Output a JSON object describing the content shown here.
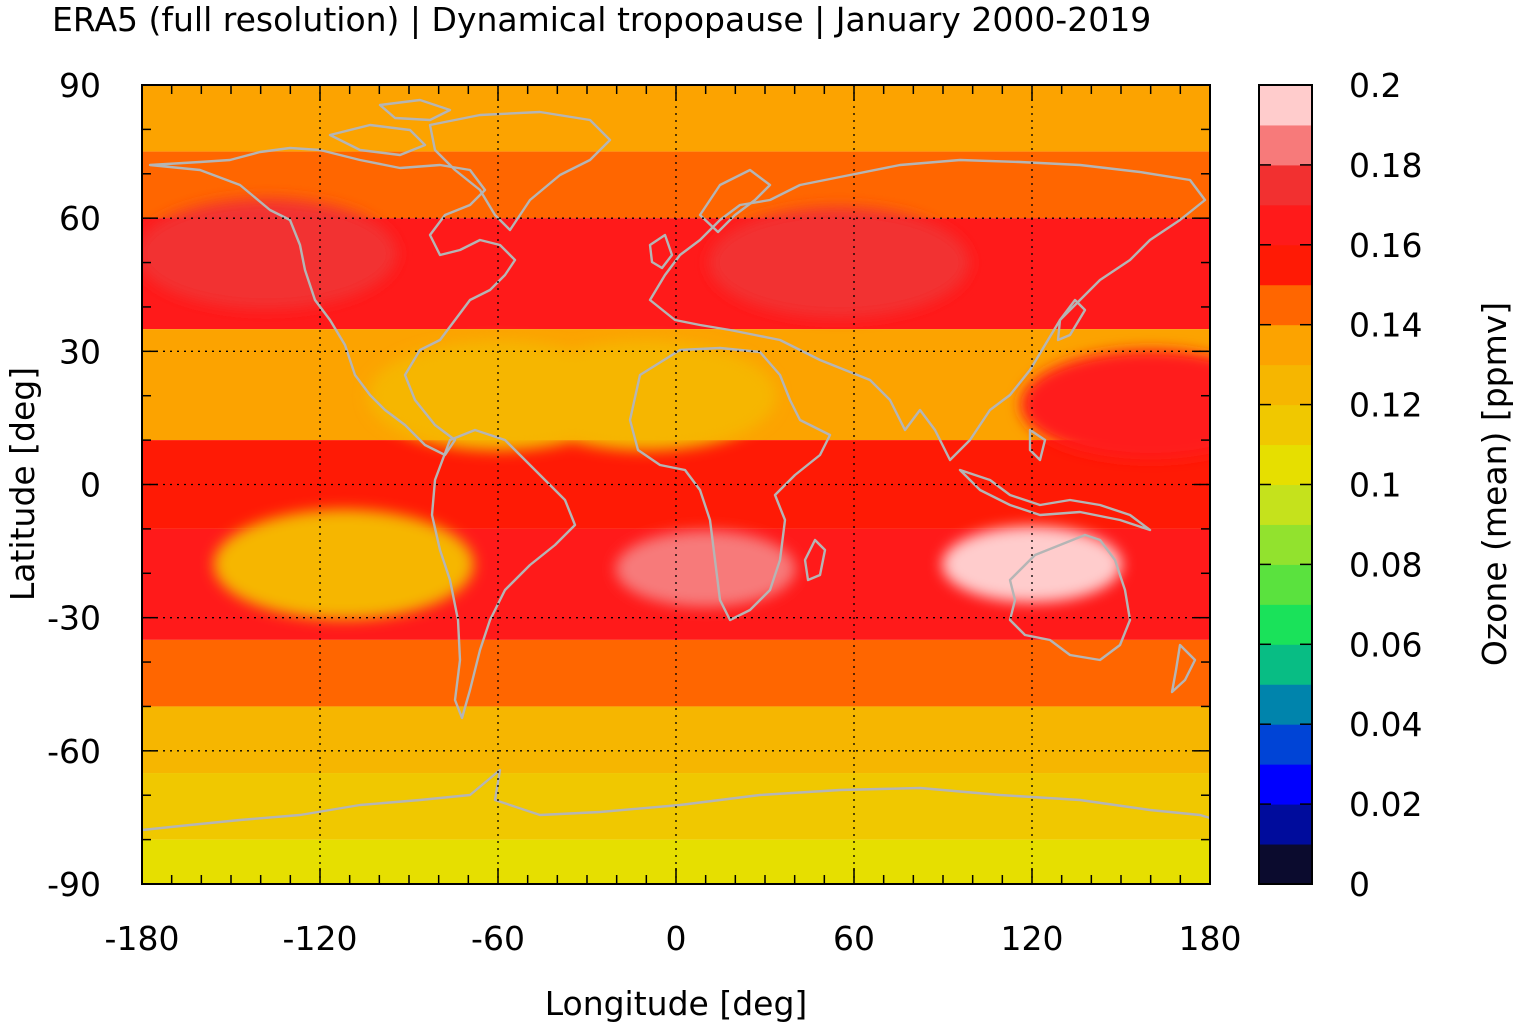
{
  "chart_data": {
    "type": "heatmap",
    "title": "ERA5 (full resolution) | Dynamical tropopause | January 2000-2019",
    "xlabel": "Longitude [deg]",
    "ylabel": "Latitude [deg]",
    "xlim": [
      -180,
      180
    ],
    "ylim": [
      -90,
      90
    ],
    "x_ticks": [
      "-180",
      "-120",
      "-60",
      "0",
      "60",
      "120",
      "180"
    ],
    "y_ticks": [
      "90",
      "60",
      "30",
      "0",
      "-30",
      "-60",
      "-90"
    ],
    "x_tick_values": [
      -180,
      -120,
      -60,
      0,
      60,
      120,
      180
    ],
    "y_tick_values": [
      90,
      60,
      30,
      0,
      -30,
      -60,
      -90
    ],
    "grid": true,
    "colorbar": {
      "label": "Ozone (mean) [ppmv]",
      "range": [
        0,
        0.2
      ],
      "tick_labels": [
        "0.2",
        "0.18",
        "0.16",
        "0.14",
        "0.12",
        "0.1",
        "0.08",
        "0.06",
        "0.04",
        "0.02",
        "0"
      ],
      "tick_values": [
        0.2,
        0.18,
        0.16,
        0.14,
        0.12,
        0.1,
        0.08,
        0.06,
        0.04,
        0.02,
        0
      ],
      "colors": [
        "#0b0b2e",
        "#000c9c",
        "#0000ff",
        "#0044d6",
        "#0084ac",
        "#08bd84",
        "#1ae25a",
        "#5ae23e",
        "#92e22e",
        "#c5e21c",
        "#e6df00",
        "#f0c800",
        "#f6b600",
        "#fca300",
        "#ff6600",
        "#ff1a05",
        "#ff1a1a",
        "#f23030",
        "#f77a7a",
        "#ffcccc"
      ]
    },
    "field_bands": [
      {
        "lat_range": [
          75,
          90
        ],
        "ozone_ppmv": 0.135
      },
      {
        "lat_range": [
          60,
          75
        ],
        "ozone_ppmv": 0.145
      },
      {
        "lat_range": [
          35,
          60
        ],
        "ozone_ppmv": 0.165
      },
      {
        "lat_range": [
          10,
          35
        ],
        "ozone_ppmv": 0.135
      },
      {
        "lat_range": [
          -10,
          10
        ],
        "ozone_ppmv": 0.155
      },
      {
        "lat_range": [
          -35,
          -10
        ],
        "ozone_ppmv": 0.165
      },
      {
        "lat_range": [
          -50,
          -35
        ],
        "ozone_ppmv": 0.145
      },
      {
        "lat_range": [
          -65,
          -50
        ],
        "ozone_ppmv": 0.125
      },
      {
        "lat_range": [
          -80,
          -65
        ],
        "ozone_ppmv": 0.115
      },
      {
        "lat_range": [
          -90,
          -80
        ],
        "ozone_ppmv": 0.105
      }
    ],
    "field_features": [
      {
        "lon": -138,
        "lat": 52,
        "ozone_ppmv": 0.175
      },
      {
        "lon": 55,
        "lat": 50,
        "ozone_ppmv": 0.175
      },
      {
        "lon": 160,
        "lat": 18,
        "ozone_ppmv": 0.165
      },
      {
        "lon": -112,
        "lat": -18,
        "ozone_ppmv": 0.125
      },
      {
        "lon": 10,
        "lat": -19,
        "ozone_ppmv": 0.185
      },
      {
        "lon": 120,
        "lat": -18,
        "ozone_ppmv": 0.195
      },
      {
        "lon": -60,
        "lat": 20,
        "ozone_ppmv": 0.125
      },
      {
        "lon": -10,
        "lat": 20,
        "ozone_ppmv": 0.125
      }
    ],
    "coastline_color": "#b5b5b5"
  }
}
